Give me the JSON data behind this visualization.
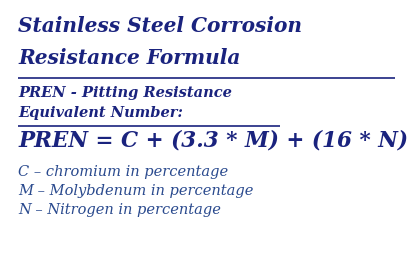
{
  "background_color": "#ffffff",
  "title_line1": "Stainless Steel Corrosion",
  "title_line2": "Resistance Formula",
  "subtitle_line1": "PREN - Pitting Resistance",
  "subtitle_line2": "Equivalent Number:",
  "formula": "PREN = C + (3.3 * M) + (16 * N)",
  "desc1": "C – chromium in percentage",
  "desc2": "M – Molybdenum in percentage",
  "desc3": "N – Nitrogen in percentage",
  "title_color": "#1a237e",
  "subtitle_color": "#1a237e",
  "formula_color": "#1a237e",
  "desc_color": "#2a4a8e",
  "underline_color": "#1a237e",
  "title_fontsize": 14.5,
  "subtitle_fontsize": 10.5,
  "formula_fontsize": 15.5,
  "desc_fontsize": 10.5
}
